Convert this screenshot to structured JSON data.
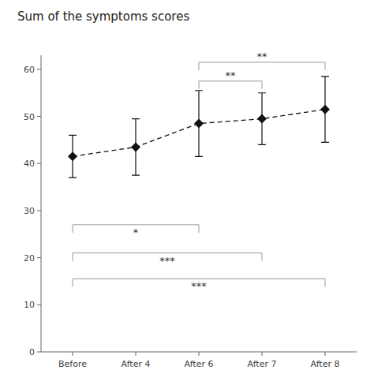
{
  "chart_data": {
    "type": "line",
    "title": "Sum of the symptoms scores",
    "categories": [
      "Before",
      "After 4",
      "After 6",
      "After 7",
      "After 8"
    ],
    "values": [
      41.5,
      43.5,
      48.5,
      49.5,
      51.5
    ],
    "errors": [
      4.5,
      6.0,
      7.0,
      5.5,
      7.0
    ],
    "color": "#111111",
    "marker": "diamond",
    "line_style": "dashed",
    "ylim": [
      0,
      63
    ],
    "yticks": [
      0,
      10,
      20,
      30,
      40,
      50,
      60
    ],
    "annotations": [
      {
        "type": "bracket",
        "from": "Before",
        "to": "After 6",
        "y": 27.0,
        "label": "*",
        "position": "below"
      },
      {
        "type": "bracket",
        "from": "Before",
        "to": "After 7",
        "y": 21.0,
        "label": "***",
        "position": "below"
      },
      {
        "type": "bracket",
        "from": "Before",
        "to": "After 8",
        "y": 15.5,
        "label": "***",
        "position": "below"
      },
      {
        "type": "bracket",
        "from": "After 6",
        "to": "After 7",
        "y": 57.5,
        "label": "**",
        "position": "above"
      },
      {
        "type": "bracket",
        "from": "After 6",
        "to": "After 8",
        "y": 61.5,
        "label": "**",
        "position": "above"
      }
    ]
  }
}
